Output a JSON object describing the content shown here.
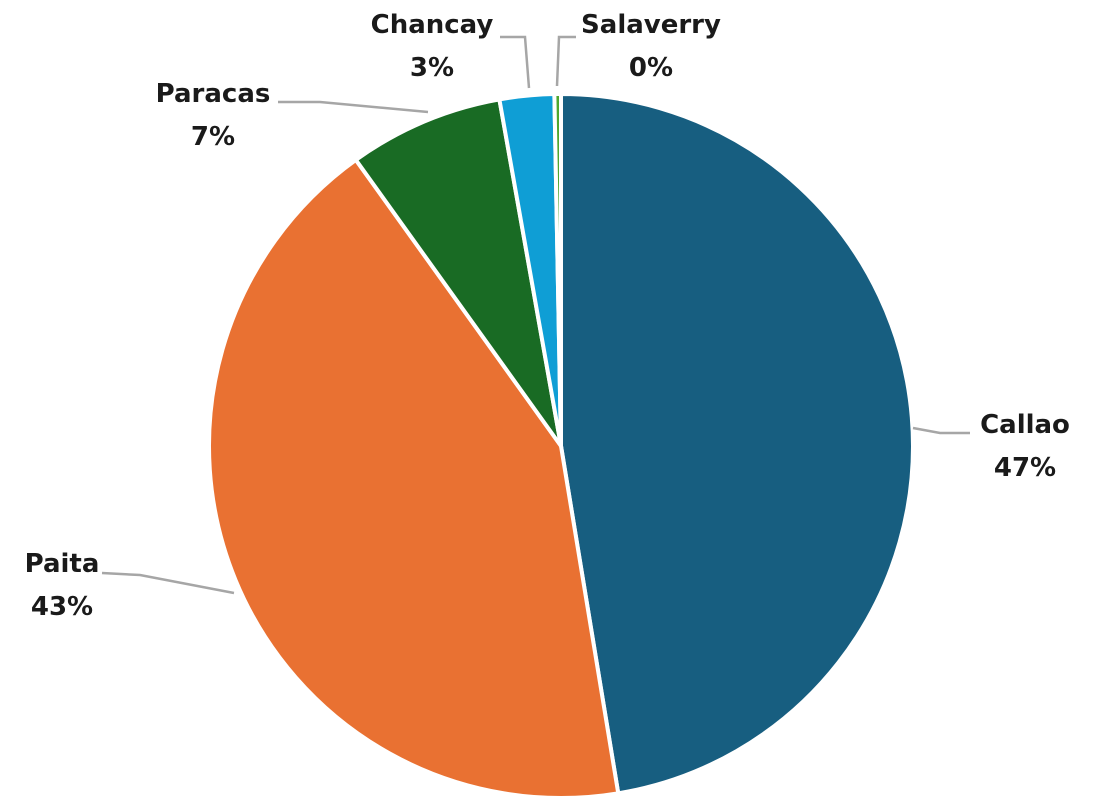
{
  "chart_data": {
    "type": "pie",
    "title": "",
    "start_angle_deg": 0,
    "direction": "clockwise",
    "legend": "none",
    "slices": [
      {
        "name": "Callao",
        "value": 47.4,
        "label": "47%",
        "color": "#175e80"
      },
      {
        "name": "Paita",
        "value": 42.7,
        "label": "43%",
        "color": "#e97132"
      },
      {
        "name": "Paracas",
        "value": 7.1,
        "label": "7%",
        "color": "#196b24"
      },
      {
        "name": "Chancay",
        "value": 2.5,
        "label": "3%",
        "color": "#0f9ed5"
      },
      {
        "name": "Salaverry",
        "value": 0.3,
        "label": "0%",
        "color": "#4ea72e"
      }
    ]
  }
}
